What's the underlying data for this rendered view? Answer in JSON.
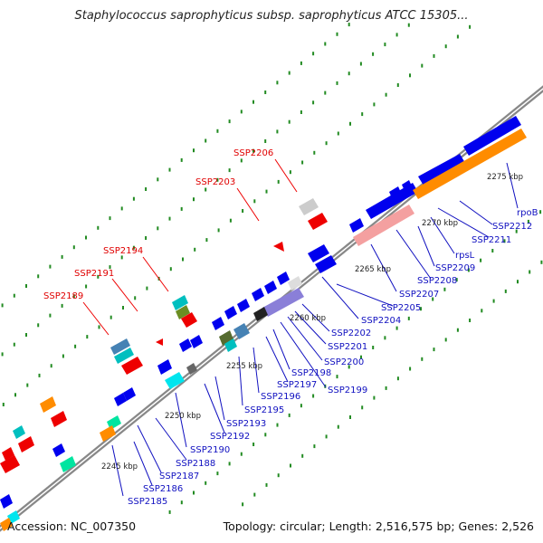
{
  "title": "Staphylococcus saprophyticus subsp. saprophyticus ATCC 15305...",
  "footer": {
    "accession": "Accession: NC_007350",
    "summary": "Topology: circular; Length: 2,516,575 bp; Genes: 2,526"
  },
  "colors": {
    "backbone": "#999999",
    "cds_forward": "#0000ee",
    "rrna": "#ff8c00",
    "rrna_light": "#f4a0a0",
    "other": "#ee0000",
    "ticks": "#228b22"
  },
  "kbp_marks": [
    "2245 kbp",
    "2250 kbp",
    "2255 kbp",
    "2260 kbp",
    "2265 kbp",
    "2270 kbp",
    "2275 kbp"
  ],
  "red_labels": [
    "SSP2189",
    "SSP2191",
    "SSP2194",
    "SSP2203",
    "SSP2206"
  ],
  "blue_labels": [
    "SSP2185",
    "SSP2186",
    "SSP2187",
    "SSP2188",
    "SSP2190",
    "SSP2192",
    "SSP2193",
    "SSP2195",
    "SSP2196",
    "SSP2197",
    "SSP2198",
    "SSP2199",
    "SSP2200",
    "SSP2201",
    "SSP2202",
    "SSP2204",
    "SSP2205",
    "SSP2207",
    "SSP2208",
    "SSP2209",
    "rpsL",
    "SSP2211",
    "SSP2212",
    "rpoB"
  ]
}
